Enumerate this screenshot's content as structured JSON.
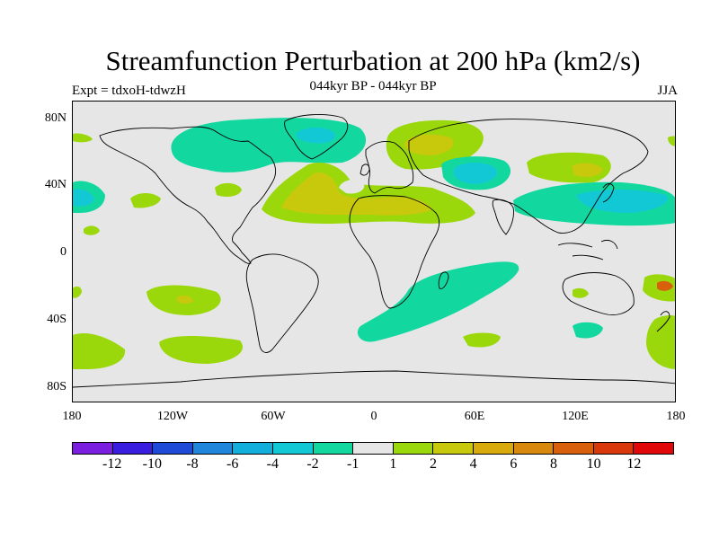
{
  "title": "Streamfunction Perturbation at 200 hPa (km2/s)",
  "subtitle": "044kyr BP - 044kyr BP",
  "expt_label": "Expt = tdxoH-tdwzH",
  "season_label": "JJA",
  "y_ticks": [
    "80N",
    "40N",
    "0",
    "40S",
    "80S"
  ],
  "x_ticks": [
    "180",
    "120W",
    "60W",
    "0",
    "60E",
    "120E",
    "180"
  ],
  "colorbar": {
    "colors": [
      "#7a1fe0",
      "#3a1ee0",
      "#1f4ad8",
      "#1f86dc",
      "#12aedc",
      "#12c8d4",
      "#12d8a0",
      "#e6e6e6",
      "#9ad80c",
      "#c8c80c",
      "#d8aa0c",
      "#d8880c",
      "#d8600c",
      "#d8380c",
      "#e00808"
    ],
    "labels": [
      "-12",
      "-10",
      "-8",
      "-6",
      "-4",
      "-2",
      "-1",
      "1",
      "2",
      "4",
      "6",
      "8",
      "10",
      "12"
    ]
  },
  "colors": {
    "neutral": "#e6e6e6",
    "pos1": "#9ad80c",
    "pos2": "#c8c80c",
    "neg1": "#12d8a0",
    "neg2": "#12c8d4"
  }
}
